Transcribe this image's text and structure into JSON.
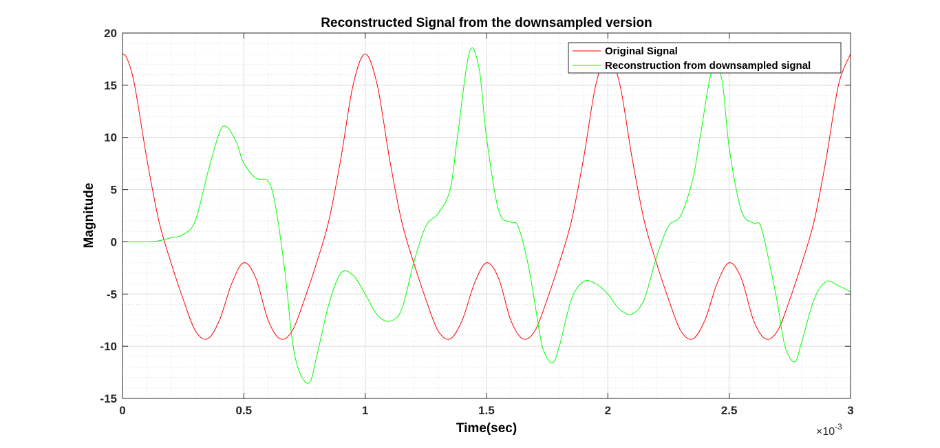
{
  "chart_data": {
    "type": "line",
    "title": "Reconstructed Signal from the downsampled version",
    "xlabel": "Time(sec)",
    "ylabel": "Magnitude",
    "x_exponent_base": "×10",
    "x_exponent_power": "-3",
    "xlim": [
      0,
      3
    ],
    "ylim": [
      -15,
      20
    ],
    "xticks": [
      0,
      0.5,
      1,
      1.5,
      2,
      2.5,
      3
    ],
    "xtick_labels": [
      "0",
      "0.5",
      "1",
      "1.5",
      "2",
      "2.5",
      "3"
    ],
    "yticks": [
      -15,
      -10,
      -5,
      0,
      5,
      10,
      15,
      20
    ],
    "ytick_labels": [
      "-15",
      "-10",
      "-5",
      "0",
      "5",
      "10",
      "15",
      "20"
    ],
    "grid": true,
    "minor_grid": true,
    "legend_position": "top-right",
    "series": [
      {
        "name": "Original Signal",
        "color": "#ff0000",
        "x": [
          0,
          0.02,
          0.05,
          0.1,
          0.15,
          0.2,
          0.25,
          0.3,
          0.35,
          0.4,
          0.45,
          0.5,
          0.55,
          0.6,
          0.65,
          0.7,
          0.75,
          0.8,
          0.85,
          0.9,
          0.95,
          1.0,
          1.05,
          1.1,
          1.15,
          1.2,
          1.25,
          1.3,
          1.35,
          1.4,
          1.45,
          1.5,
          1.55,
          1.6,
          1.65,
          1.7,
          1.75,
          1.8,
          1.85,
          1.9,
          1.95,
          2.0,
          2.05,
          2.1,
          2.15,
          2.2,
          2.25,
          2.3,
          2.35,
          2.4,
          2.45,
          2.5,
          2.55,
          2.6,
          2.65,
          2.7,
          2.75,
          2.8,
          2.85,
          2.9,
          2.95,
          3.0
        ],
        "y": [
          18,
          17.5,
          15,
          8,
          2,
          -2,
          -5.5,
          -8.5,
          -9.3,
          -7.5,
          -4,
          -2,
          -3.5,
          -7.5,
          -9.3,
          -8.5,
          -5.5,
          -2,
          2,
          8,
          15,
          18,
          15,
          8,
          2,
          -2,
          -5.5,
          -8.5,
          -9.3,
          -7.5,
          -4,
          -2,
          -3.5,
          -7.5,
          -9.3,
          -8.5,
          -5.5,
          -2,
          2,
          8,
          15,
          18,
          15,
          8,
          2,
          -2,
          -5.5,
          -8.5,
          -9.3,
          -7.5,
          -4,
          -2,
          -3.5,
          -7.5,
          -9.3,
          -8.5,
          -5.5,
          -2,
          2,
          8,
          15,
          18
        ]
      },
      {
        "name": "Reconstruction from downsampled signal",
        "color": "#00ff00",
        "x": [
          0,
          0.1,
          0.15,
          0.2,
          0.25,
          0.3,
          0.35,
          0.4,
          0.43,
          0.47,
          0.5,
          0.55,
          0.6,
          0.63,
          0.67,
          0.7,
          0.73,
          0.77,
          0.8,
          0.85,
          0.9,
          0.95,
          1.0,
          1.05,
          1.1,
          1.15,
          1.2,
          1.25,
          1.3,
          1.35,
          1.38,
          1.43,
          1.47,
          1.5,
          1.55,
          1.6,
          1.63,
          1.67,
          1.7,
          1.73,
          1.77,
          1.8,
          1.85,
          1.9,
          1.95,
          2.0,
          2.05,
          2.1,
          2.15,
          2.2,
          2.25,
          2.3,
          2.35,
          2.38,
          2.43,
          2.47,
          2.5,
          2.55,
          2.6,
          2.63,
          2.67,
          2.7,
          2.73,
          2.77,
          2.8,
          2.85,
          2.9,
          2.95,
          3.0
        ],
        "y": [
          0,
          0,
          0.1,
          0.4,
          0.7,
          2,
          6.5,
          10.5,
          11,
          9.5,
          7.5,
          6.1,
          5.8,
          3.5,
          -3,
          -9.5,
          -12.5,
          -13.5,
          -11,
          -6,
          -3,
          -3.2,
          -5,
          -7,
          -7.6,
          -6.5,
          -2,
          1.5,
          2.7,
          5,
          10,
          18.2,
          16.5,
          10,
          3,
          1.9,
          1.5,
          -2,
          -6,
          -10,
          -11.6,
          -10,
          -5.5,
          -3.8,
          -4,
          -5,
          -6.5,
          -6.9,
          -5.5,
          -1.5,
          1.5,
          2.5,
          6,
          10,
          16.5,
          15.5,
          9,
          3,
          1.8,
          1.5,
          -2.5,
          -6,
          -10,
          -11.5,
          -9.5,
          -5.5,
          -3.8,
          -4.2,
          -4.8
        ]
      }
    ]
  }
}
